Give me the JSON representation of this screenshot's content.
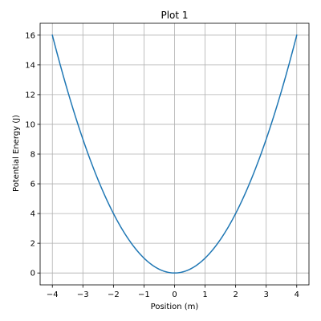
{
  "chart_data": {
    "type": "line",
    "title": "Plot 1",
    "xlabel": "Position (m)",
    "ylabel": "Potential Energy (J)",
    "xlim": [
      -4.4,
      4.4
    ],
    "ylim": [
      -0.8,
      16.8
    ],
    "xticks": [
      -4,
      -3,
      -2,
      -1,
      0,
      1,
      2,
      3,
      4
    ],
    "xtick_labels": [
      "−4",
      "−3",
      "−2",
      "−1",
      "0",
      "1",
      "2",
      "3",
      "4"
    ],
    "yticks": [
      0,
      2,
      4,
      6,
      8,
      10,
      12,
      14,
      16
    ],
    "ytick_labels": [
      "0",
      "2",
      "4",
      "6",
      "8",
      "10",
      "12",
      "14",
      "16"
    ],
    "grid": true,
    "series": [
      {
        "color": "#1f77b4",
        "x": [
          -4,
          -3.5,
          -3,
          -2.5,
          -2,
          -1.5,
          -1,
          -0.5,
          0,
          0.5,
          1,
          1.5,
          2,
          2.5,
          3,
          3.5,
          4
        ],
        "y": [
          16,
          12.25,
          9,
          6.25,
          4,
          2.25,
          1,
          0.25,
          0,
          0.25,
          1,
          2.25,
          4,
          6.25,
          9,
          12.25,
          16
        ]
      }
    ]
  }
}
